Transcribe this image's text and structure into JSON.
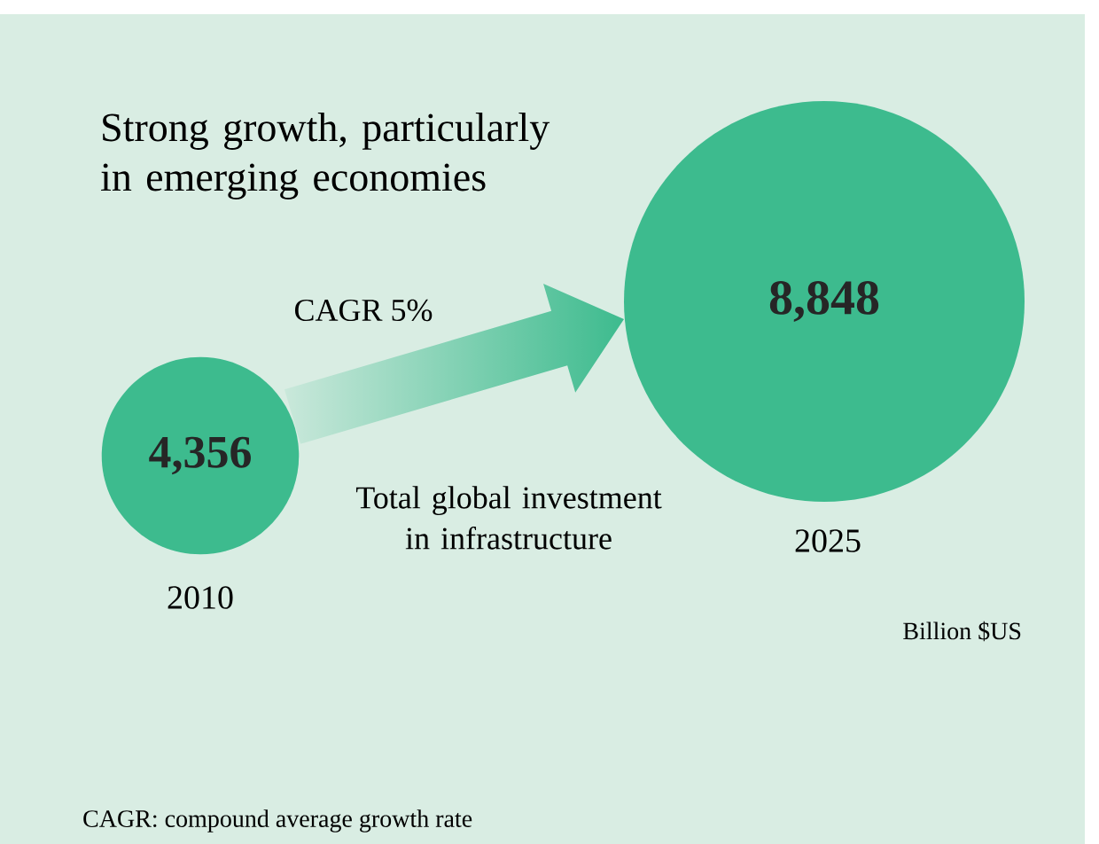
{
  "chart_data": {
    "type": "other",
    "title": "Strong growth, particularly in emerging economies",
    "categories": [
      "2010",
      "2025"
    ],
    "values": [
      4356,
      8848
    ],
    "value_labels": [
      "4,356",
      "8,848"
    ],
    "color": "#3dbb8e",
    "annotations": [
      "CAGR 5%",
      "Total global investment in infrastructure",
      "Billion $US",
      "CAGR: compound average growth rate"
    ]
  }
}
